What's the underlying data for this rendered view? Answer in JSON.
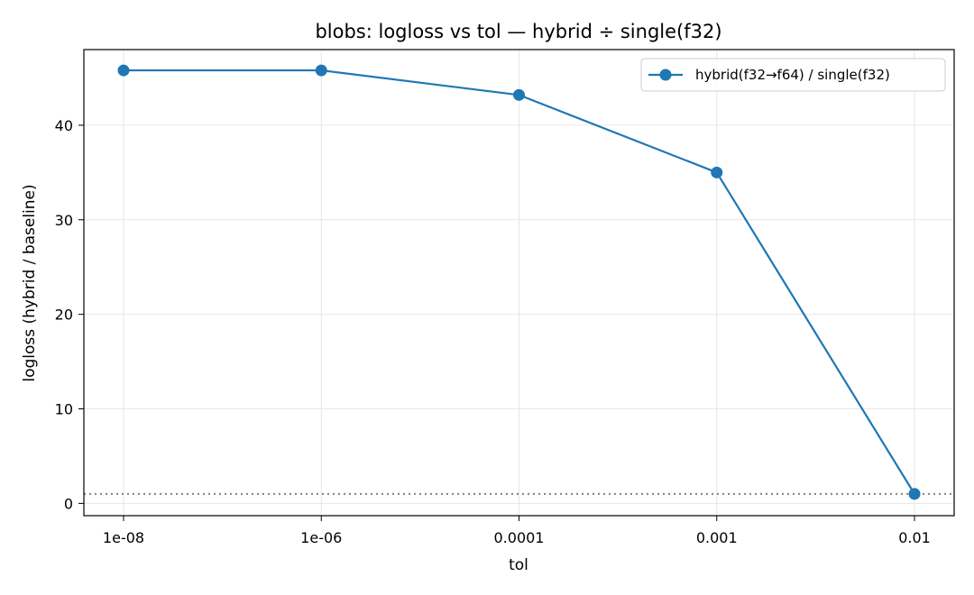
{
  "chart_data": {
    "type": "line",
    "title": "blobs: logloss vs tol — hybrid ÷ single(f32)",
    "xlabel": "tol",
    "ylabel": "logloss (hybrid / baseline)",
    "categories": [
      "1e-08",
      "1e-06",
      "0.0001",
      "0.001",
      "0.01"
    ],
    "series": [
      {
        "name": "hybrid(f32→f64) / single(f32)",
        "values": [
          45.8,
          45.8,
          43.2,
          35.0,
          1.0
        ],
        "color": "#1f77b4",
        "marker": "circle"
      }
    ],
    "yticks": [
      0,
      10,
      20,
      30,
      40
    ],
    "ylim": [
      -1.3,
      48.0
    ],
    "reference_line": {
      "y": 1.0,
      "style": "dotted",
      "color": "#808080"
    },
    "grid": true,
    "legend_position": "top-right"
  }
}
